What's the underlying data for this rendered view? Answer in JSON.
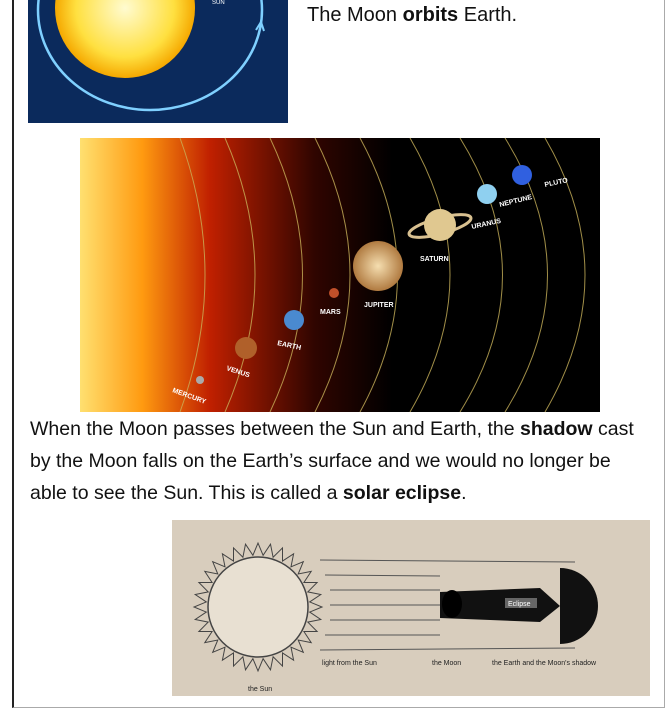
{
  "caption": [
    "The Moon ",
    "orbits",
    " Earth."
  ],
  "orbit_image": {
    "label": "SUN"
  },
  "solar_system": {
    "planets": [
      "MERCURY",
      "VENUS",
      "EARTH",
      "MARS",
      "JUPITER",
      "SATURN",
      "URANUS",
      "NEPTUNE",
      "PLUTO"
    ]
  },
  "paragraph": [
    "When the Moon passes between the Sun and Earth, the ",
    "shadow",
    " cast by the Moon falls on the Earth’s surface and we would no longer be able to see the Sun. This is called a ",
    "solar eclipse",
    "."
  ],
  "eclipse_diagram": {
    "labels": [
      "Eclipse",
      "light from the Sun",
      "the Moon",
      "the Earth and the Moon's shadow",
      "the Sun"
    ]
  }
}
